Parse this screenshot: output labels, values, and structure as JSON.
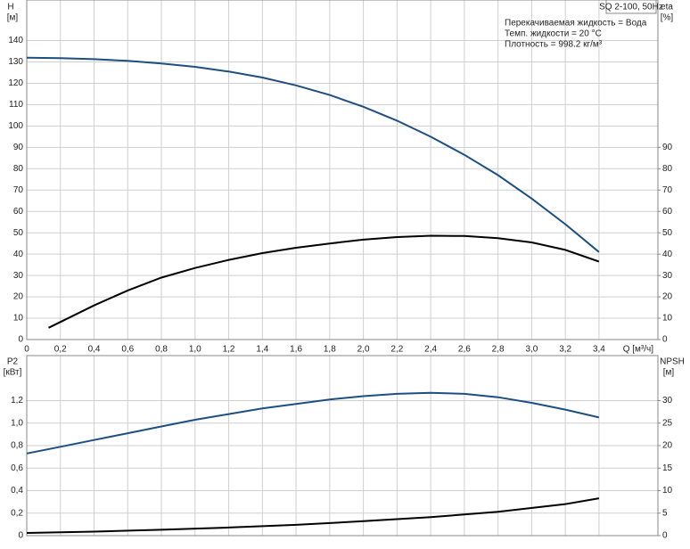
{
  "chart_data": [
    {
      "type": "line",
      "ylabel": "H",
      "yunit": "[м]",
      "y2label": "eta",
      "y2unit": "[%]",
      "xlabel": "Q [м³/ч]",
      "title": "SQ 2-100, 50Hz",
      "notes": [
        "Перекачиваемая жидкость = Вода",
        "Темп. жидкости = 20 °C",
        "Плотность = 998.2 кг/м³"
      ],
      "xlim": [
        0,
        3.75
      ],
      "xticks": [
        0,
        {
          "value": 0.2,
          "label": "0,2"
        },
        {
          "value": 0.4,
          "label": "0,4"
        },
        {
          "value": 0.6,
          "label": "0,6"
        },
        {
          "value": 0.8,
          "label": "0,8"
        },
        {
          "value": 1.0,
          "label": "1,0"
        },
        {
          "value": 1.2,
          "label": "1,2"
        },
        {
          "value": 1.4,
          "label": "1,4"
        },
        {
          "value": 1.6,
          "label": "1,6"
        },
        {
          "value": 1.8,
          "label": "1,8"
        },
        {
          "value": 2.0,
          "label": "2,0"
        },
        {
          "value": 2.2,
          "label": "2,2"
        },
        {
          "value": 2.4,
          "label": "2,4"
        },
        {
          "value": 2.6,
          "label": "2,6"
        },
        {
          "value": 2.8,
          "label": "2,8"
        },
        {
          "value": 3.0,
          "label": "3,0"
        },
        {
          "value": 3.2,
          "label": "3,2"
        },
        {
          "value": 3.4,
          "label": "3,4"
        }
      ],
      "ylim": [
        0,
        159
      ],
      "yticks": [
        0,
        10,
        20,
        30,
        40,
        50,
        60,
        70,
        80,
        90,
        100,
        110,
        120,
        130,
        140
      ],
      "y2lim": [
        0,
        159
      ],
      "y2ticks": [
        0,
        10,
        20,
        30,
        40,
        50,
        60,
        70,
        80,
        90
      ],
      "series": [
        {
          "name": "H",
          "color": "#1d4f82",
          "x": [
            0,
            0.2,
            0.4,
            0.6,
            0.8,
            1.0,
            1.2,
            1.4,
            1.6,
            1.8,
            2.0,
            2.2,
            2.4,
            2.6,
            2.8,
            3.0,
            3.2,
            3.4
          ],
          "values": [
            132,
            131.8,
            131.3,
            130.5,
            129.3,
            127.7,
            125.5,
            122.7,
            119,
            114.5,
            109,
            102.5,
            95,
            86.5,
            77,
            66,
            54,
            41
          ]
        },
        {
          "name": "eta",
          "color": "#000000",
          "axis": "y2",
          "x": [
            0.13,
            0.4,
            0.6,
            0.8,
            1.0,
            1.2,
            1.4,
            1.6,
            1.8,
            2.0,
            2.2,
            2.4,
            2.6,
            2.8,
            3.0,
            3.2,
            3.4
          ],
          "values": [
            5.5,
            16,
            23,
            29,
            33.5,
            37.3,
            40.5,
            43,
            45,
            46.8,
            48,
            48.6,
            48.5,
            47.5,
            45.5,
            42,
            36.5
          ]
        }
      ]
    },
    {
      "type": "line",
      "ylabel": "P2",
      "yunit": "[кВт]",
      "y2label": "NPSH",
      "y2unit": "[м]",
      "xlim": [
        0,
        3.75
      ],
      "ylim": [
        0,
        1.6
      ],
      "yticks": [
        0,
        {
          "value": 0.2,
          "label": "0,2"
        },
        {
          "value": 0.4,
          "label": "0,4"
        },
        {
          "value": 0.6,
          "label": "0,6"
        },
        {
          "value": 0.8,
          "label": "0,8"
        },
        {
          "value": 1.0,
          "label": "1,0"
        },
        {
          "value": 1.2,
          "label": "1,2"
        }
      ],
      "y2lim": [
        0,
        40
      ],
      "y2ticks": [
        0,
        5,
        10,
        15,
        20,
        25,
        30
      ],
      "series": [
        {
          "name": "P2",
          "color": "#1d4f82",
          "x": [
            0,
            0.2,
            0.4,
            0.6,
            0.8,
            1.0,
            1.2,
            1.4,
            1.6,
            1.8,
            2.0,
            2.2,
            2.4,
            2.6,
            2.8,
            3.0,
            3.2,
            3.4
          ],
          "values": [
            0.73,
            0.79,
            0.85,
            0.91,
            0.97,
            1.03,
            1.08,
            1.13,
            1.17,
            1.21,
            1.24,
            1.26,
            1.27,
            1.26,
            1.23,
            1.18,
            1.12,
            1.05
          ]
        },
        {
          "name": "NPSH",
          "color": "#000000",
          "axis": "y2",
          "x": [
            0,
            0.4,
            0.8,
            1.2,
            1.6,
            2.0,
            2.4,
            2.8,
            3.2,
            3.4
          ],
          "values": [
            0.6,
            0.9,
            1.3,
            1.8,
            2.4,
            3.2,
            4.1,
            5.3,
            7.0,
            8.3
          ]
        }
      ]
    }
  ]
}
